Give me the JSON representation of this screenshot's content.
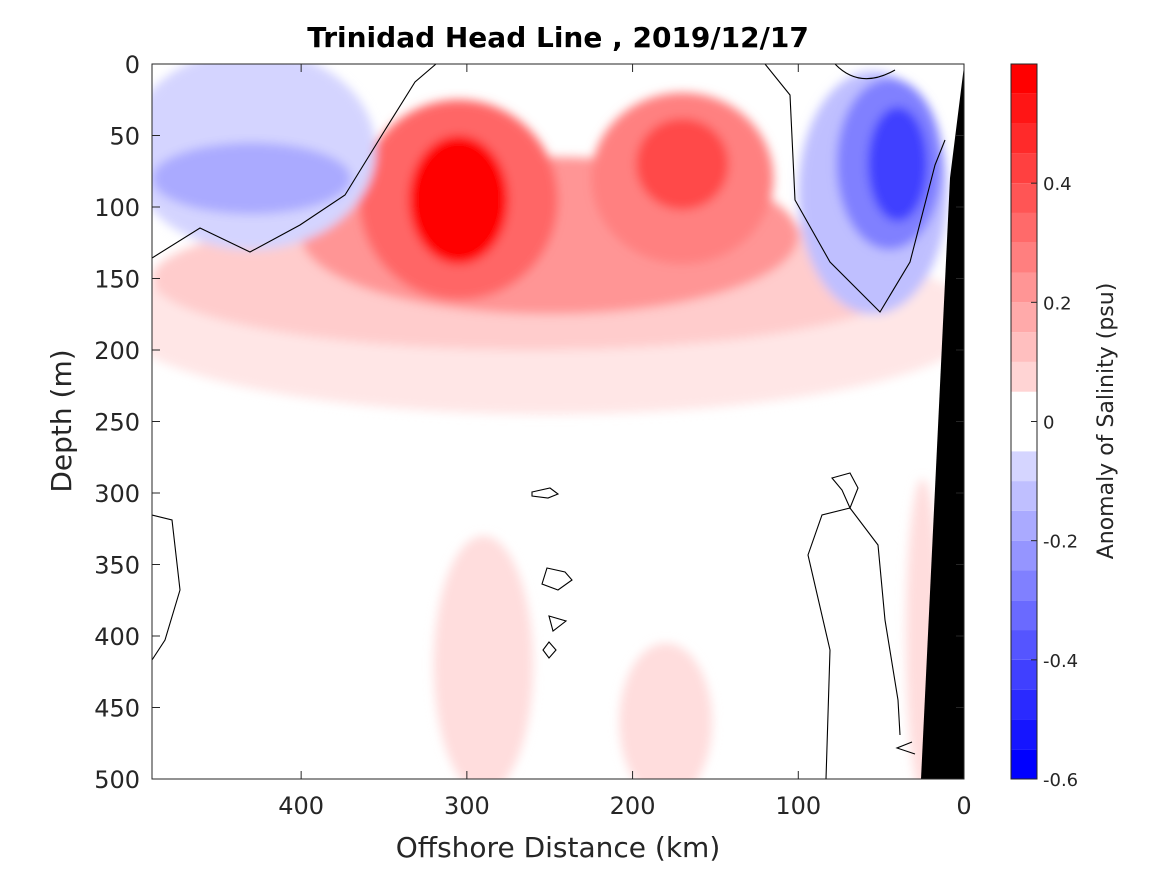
{
  "chart_data": {
    "type": "heatmap",
    "title": "Trinidad Head Line , 2019/12/17",
    "xlabel": "Offshore Distance (km)",
    "ylabel": "Depth (m)",
    "colorbar_label": "Anomaly of Salinity (psu)",
    "xlim": [
      490,
      0
    ],
    "ylim": [
      0,
      500
    ],
    "x_ticks": [
      400,
      300,
      200,
      100,
      0
    ],
    "y_ticks": [
      0,
      50,
      100,
      150,
      200,
      250,
      300,
      350,
      400,
      450,
      500
    ],
    "colorbar_range": [
      -0.6,
      0.6
    ],
    "colorbar_ticks": [
      -0.6,
      -0.4,
      -0.2,
      0,
      0.2,
      0.4
    ],
    "colorbar_tick_labels": [
      "-0.6",
      "-0.4",
      "-0.2",
      "0",
      "0.2",
      "0.4"
    ],
    "contour_levels_step": 0.05,
    "grid": false,
    "features": [
      {
        "name": "low-salinity-anomaly-offshore",
        "x_range": [
          490,
          370
        ],
        "depth_range": [
          0,
          140
        ],
        "min_value": -0.2
      },
      {
        "name": "high-salinity-core-west",
        "x_center": 305,
        "depth_center": 95,
        "max_value": 0.6
      },
      {
        "name": "high-salinity-core-east",
        "x_center": 170,
        "depth_center": 70,
        "max_value": 0.5
      },
      {
        "name": "low-salinity-anomaly-nearshore",
        "x_range": [
          110,
          15
        ],
        "depth_range": [
          0,
          170
        ],
        "min_value": -0.45
      },
      {
        "name": "weak-positive-anomaly-deep-1",
        "x_center": 290,
        "depth_center": 420,
        "max_value": 0.1
      },
      {
        "name": "weak-positive-anomaly-deep-2",
        "x_center": 180,
        "depth_center": 460,
        "max_value": 0.1
      },
      {
        "name": "weak-positive-anomaly-nearshore-deep",
        "x_center": 25,
        "depth_center": 400,
        "max_value": 0.1
      }
    ],
    "bathymetry_fill_color": "#000000"
  },
  "colors": {
    "positive_max": "#ff0000",
    "negative_max": "#0000ff",
    "zero": "#ffffff",
    "axis": "#262626"
  }
}
